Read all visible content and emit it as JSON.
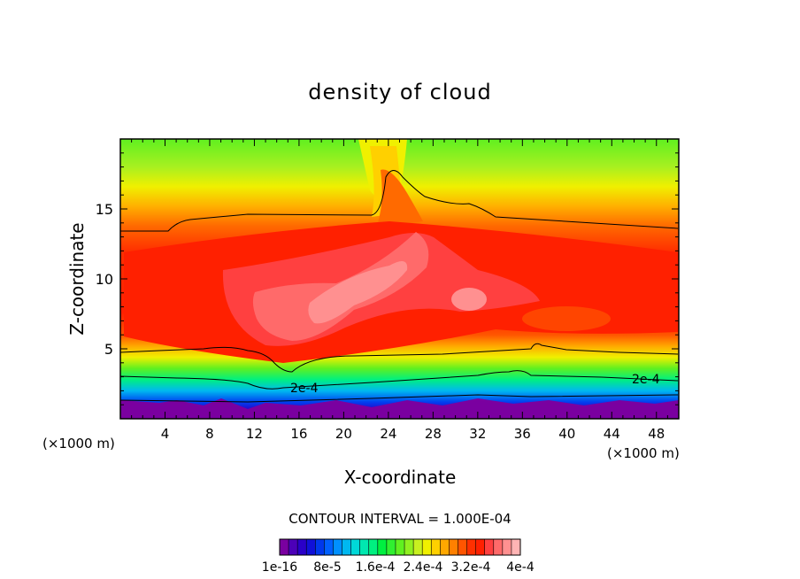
{
  "chart_data": {
    "type": "heatmap",
    "title": "density of cloud",
    "xlabel": "X-coordinate",
    "ylabel": "Z-coordinate",
    "x_unit": "(×1000 m)",
    "xlim": [
      0,
      50
    ],
    "ylim": [
      0,
      20
    ],
    "x_ticks": [
      4,
      8,
      12,
      16,
      20,
      24,
      28,
      32,
      36,
      40,
      44,
      48
    ],
    "y_ticks": [
      5,
      10,
      15
    ],
    "contour_interval_text": "CONTOUR INTERVAL = 1.000E-04",
    "contour_labels": [
      "2e-4",
      "2e-4"
    ],
    "colorbar_labels": [
      "1e-16",
      "8e-5",
      "1.6e-4",
      "2.4e-4",
      "3.2e-4",
      "4e-4"
    ],
    "colorbar_colors": [
      "#7a00a0",
      "#4c00b8",
      "#2a00c8",
      "#1010d8",
      "#0038ec",
      "#0060ff",
      "#0090ff",
      "#00b8f0",
      "#00d8d8",
      "#00e8b0",
      "#00f080",
      "#00f040",
      "#30f030",
      "#60f020",
      "#90f020",
      "#c8f020",
      "#f0f000",
      "#ffd000",
      "#ffa800",
      "#ff8000",
      "#ff5500",
      "#ff3000",
      "#ff2000",
      "#ff4040",
      "#ff6a6a",
      "#ff9090",
      "#ffb4b4"
    ],
    "fields": [
      {
        "name": "cloud_density",
        "range": [
          0,
          0.0004
        ]
      },
      {
        "name": "core",
        "x_range": [
          10,
          36
        ],
        "z_range": [
          5,
          12
        ],
        "peak_value": 0.0004
      },
      {
        "name": "upper_bump",
        "x": 24.5,
        "z_top": 17.8
      },
      {
        "name": "convective_cell",
        "x": 34,
        "z_top": 4.5
      }
    ]
  }
}
